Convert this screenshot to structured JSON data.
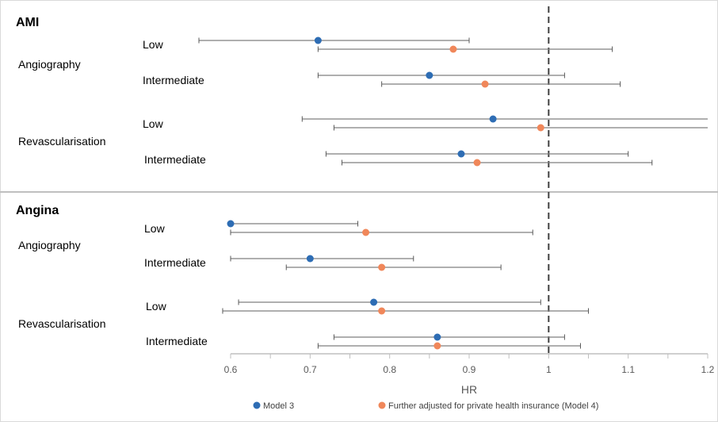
{
  "chart_data": {
    "type": "scatter",
    "xlabel": "HR",
    "xlim": [
      0.6,
      1.2
    ],
    "reference_line": 1,
    "x_ticks": [
      "0.6",
      "0.7",
      "0.8",
      "0.9",
      "1",
      "1.1",
      "1.2"
    ],
    "series": [
      {
        "name": "Model 3",
        "color": "#2e6db4"
      },
      {
        "name": "Further adjusted for private health insurance (Model 4)",
        "color": "#f0875a"
      }
    ],
    "sections": [
      {
        "title": "AMI",
        "groups": [
          {
            "label": "Angiography",
            "levels": [
              {
                "label": "Low",
                "estimates": [
                  {
                    "hr": 0.71,
                    "lo": 0.56,
                    "hi": 0.9
                  },
                  {
                    "hr": 0.88,
                    "lo": 0.71,
                    "hi": 1.08
                  }
                ]
              },
              {
                "label": "Intermediate",
                "estimates": [
                  {
                    "hr": 0.85,
                    "lo": 0.71,
                    "hi": 1.02
                  },
                  {
                    "hr": 0.92,
                    "lo": 0.79,
                    "hi": 1.09
                  }
                ]
              }
            ]
          },
          {
            "label": "Revascularisation",
            "levels": [
              {
                "label": "Low",
                "estimates": [
                  {
                    "hr": 0.93,
                    "lo": 0.69,
                    "hi": 1.25
                  },
                  {
                    "hr": 0.99,
                    "lo": 0.73,
                    "hi": 1.34
                  }
                ]
              },
              {
                "label": "Intermediate",
                "estimates": [
                  {
                    "hr": 0.89,
                    "lo": 0.72,
                    "hi": 1.1
                  },
                  {
                    "hr": 0.91,
                    "lo": 0.74,
                    "hi": 1.13
                  }
                ]
              }
            ]
          }
        ]
      },
      {
        "title": "Angina",
        "groups": [
          {
            "label": "Angiography",
            "levels": [
              {
                "label": "Low",
                "estimates": [
                  {
                    "hr": 0.6,
                    "lo": 0.6,
                    "hi": 0.76
                  },
                  {
                    "hr": 0.77,
                    "lo": 0.6,
                    "hi": 0.98
                  }
                ]
              },
              {
                "label": "Intermediate",
                "estimates": [
                  {
                    "hr": 0.7,
                    "lo": 0.6,
                    "hi": 0.83
                  },
                  {
                    "hr": 0.79,
                    "lo": 0.67,
                    "hi": 0.94
                  }
                ]
              }
            ]
          },
          {
            "label": "Revascularisation",
            "levels": [
              {
                "label": "Low",
                "estimates": [
                  {
                    "hr": 0.78,
                    "lo": 0.61,
                    "hi": 0.99
                  },
                  {
                    "hr": 0.79,
                    "lo": 0.59,
                    "hi": 1.05
                  }
                ]
              },
              {
                "label": "Intermediate",
                "estimates": [
                  {
                    "hr": 0.86,
                    "lo": 0.73,
                    "hi": 1.02
                  },
                  {
                    "hr": 0.86,
                    "lo": 0.71,
                    "hi": 1.04
                  }
                ]
              }
            ]
          }
        ]
      }
    ]
  }
}
